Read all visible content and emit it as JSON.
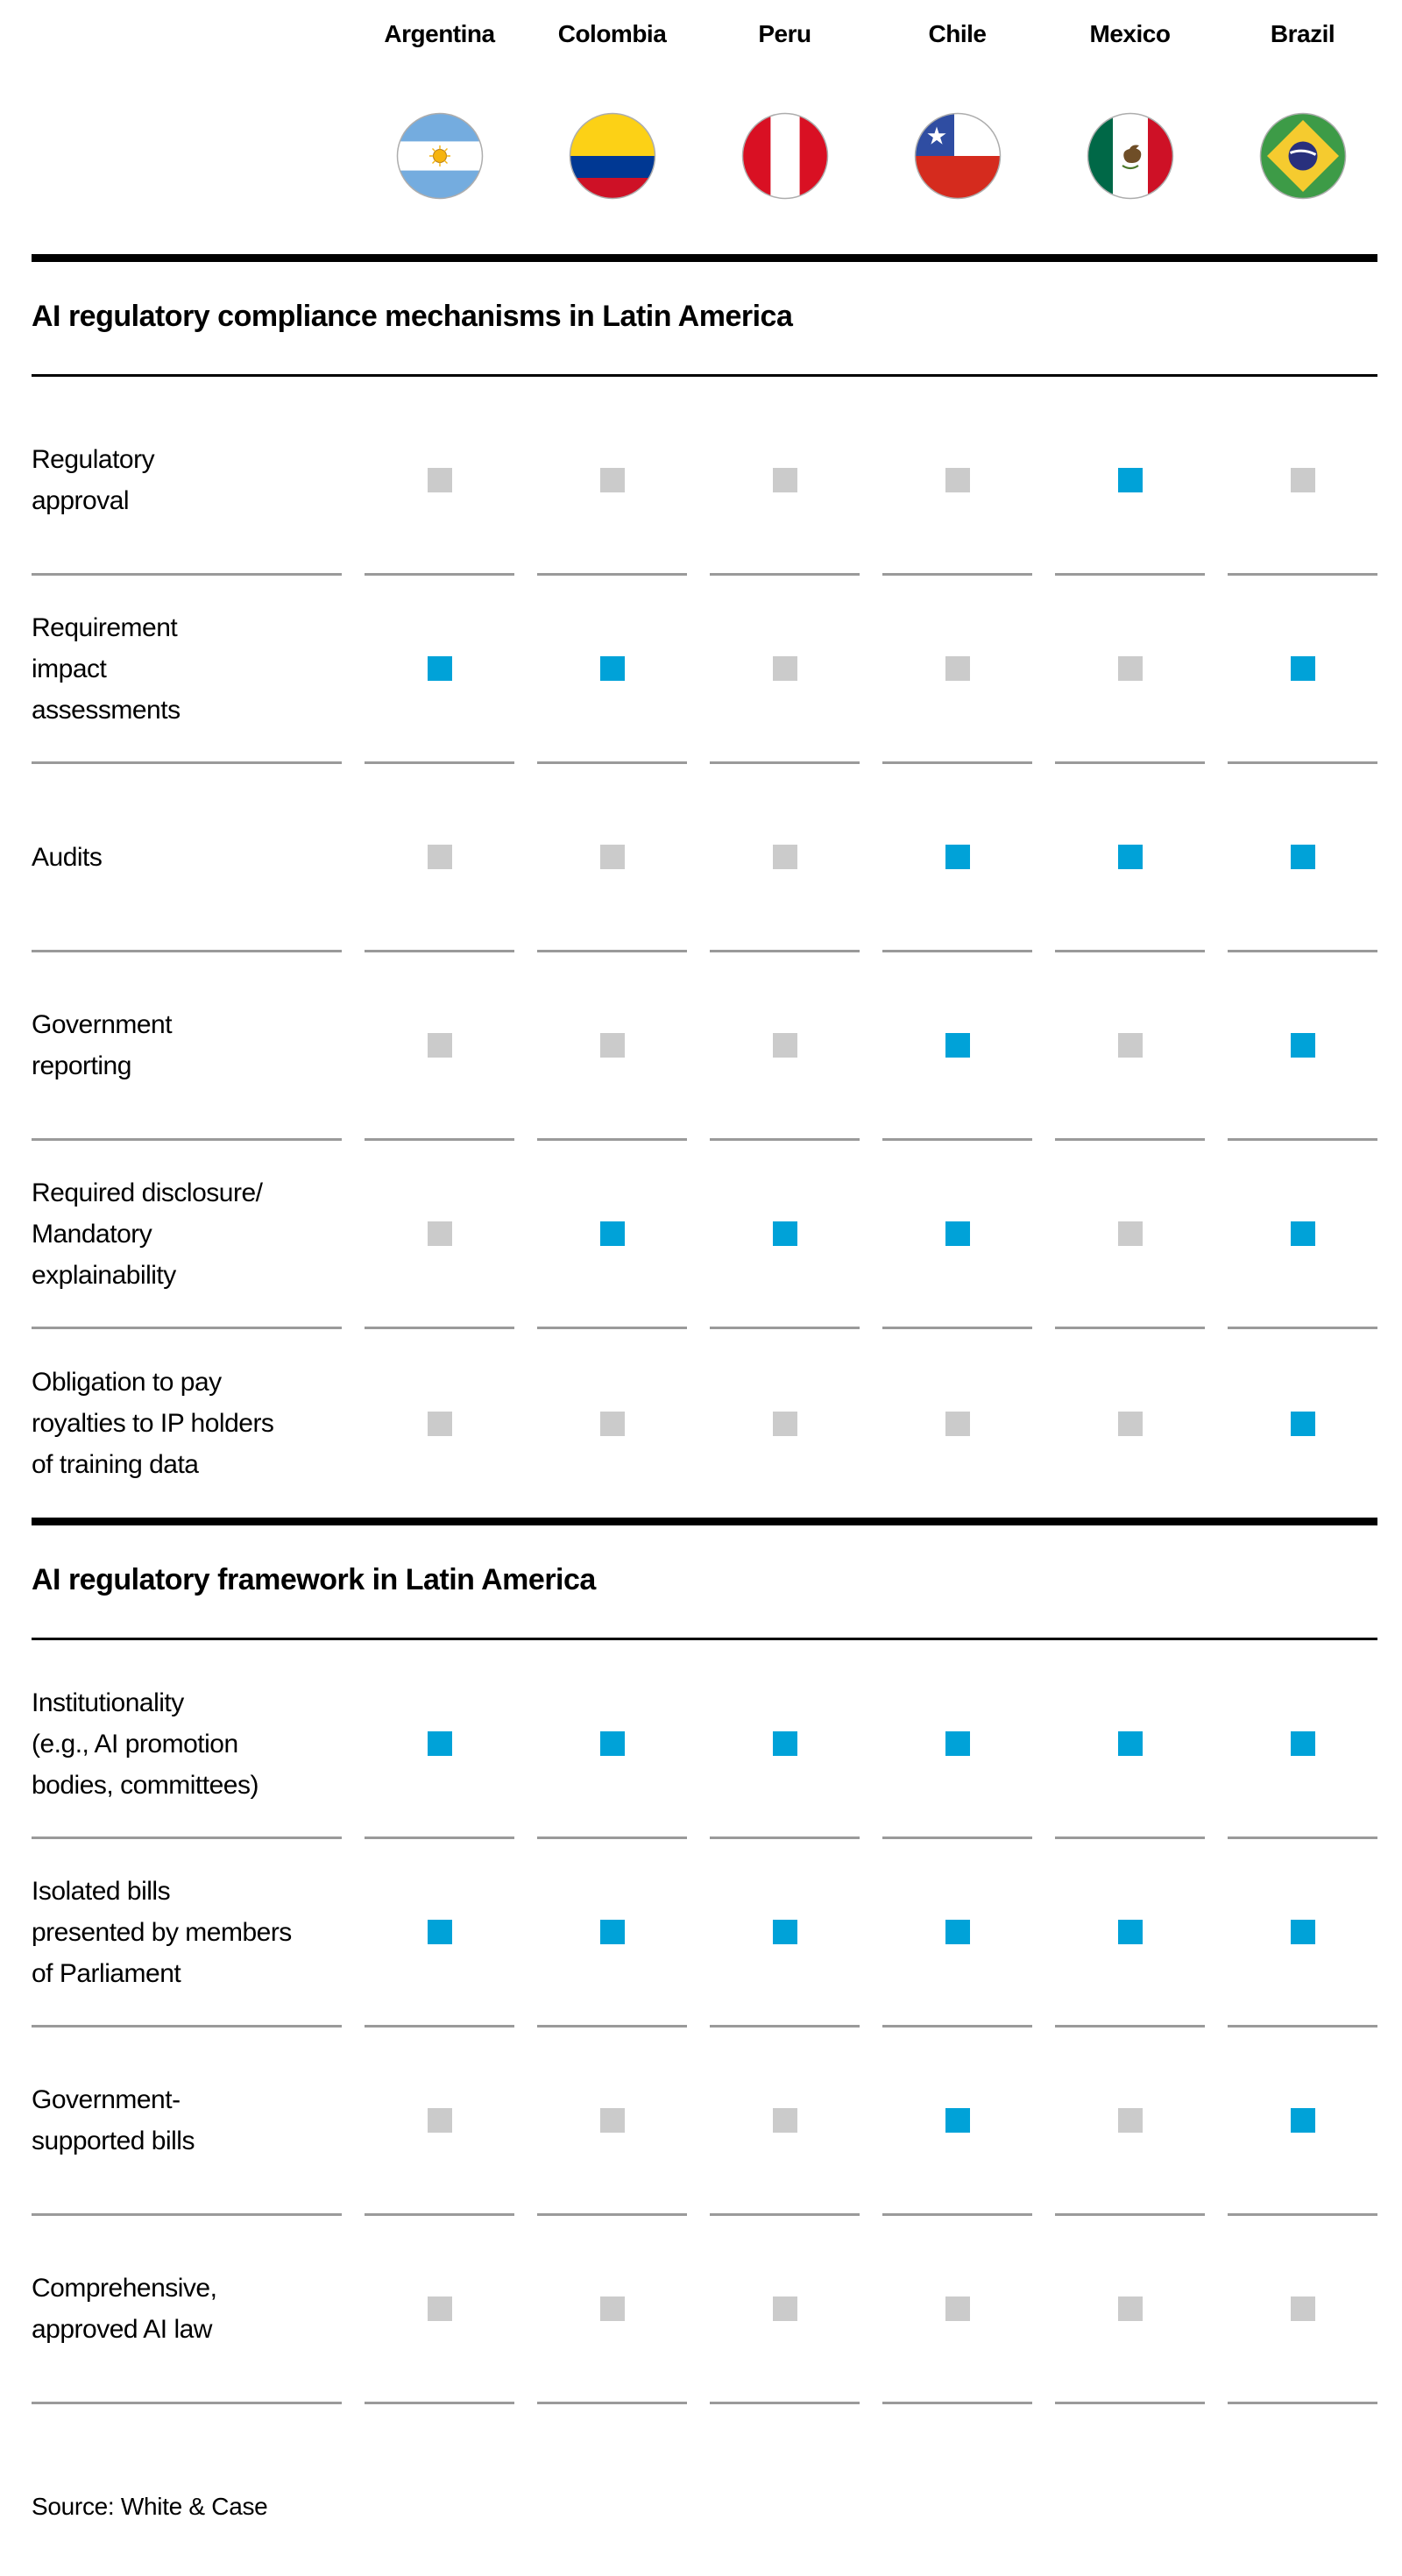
{
  "header": {
    "countries": [
      {
        "name": "Argentina",
        "flag": "argentina-flag-icon"
      },
      {
        "name": "Colombia",
        "flag": "colombia-flag-icon"
      },
      {
        "name": "Peru",
        "flag": "peru-flag-icon"
      },
      {
        "name": "Chile",
        "flag": "chile-flag-icon"
      },
      {
        "name": "Mexico",
        "flag": "mexico-flag-icon"
      },
      {
        "name": "Brazil",
        "flag": "brazil-flag-icon"
      }
    ]
  },
  "colors": {
    "present": "#00A2D8",
    "absent": "#CBCBCB",
    "separator": "#9A9A9A",
    "rule": "#000000"
  },
  "chart_data": [
    {
      "type": "table",
      "title": "AI regulatory compliance mechanisms in Latin America",
      "columns": [
        "Argentina",
        "Colombia",
        "Peru",
        "Chile",
        "Mexico",
        "Brazil"
      ],
      "cell_encoding": {
        "true": "blue square (mechanism present)",
        "false": "gray square (not present)"
      },
      "rows": [
        {
          "label": "Regulatory\napproval",
          "values": [
            false,
            false,
            false,
            false,
            true,
            false
          ]
        },
        {
          "label": "Requirement\nimpact\nassessments",
          "values": [
            true,
            true,
            false,
            false,
            false,
            true
          ]
        },
        {
          "label": "Audits",
          "values": [
            false,
            false,
            false,
            true,
            true,
            true
          ]
        },
        {
          "label": "Government\nreporting",
          "values": [
            false,
            false,
            false,
            true,
            false,
            true
          ]
        },
        {
          "label": "Required disclosure/\nMandatory\nexplainability",
          "values": [
            false,
            true,
            true,
            true,
            false,
            true
          ]
        },
        {
          "label": "Obligation to pay\nroyalties to IP holders\nof training data",
          "values": [
            false,
            false,
            false,
            false,
            false,
            true
          ]
        }
      ]
    },
    {
      "type": "table",
      "title": "AI regulatory framework in Latin America",
      "columns": [
        "Argentina",
        "Colombia",
        "Peru",
        "Chile",
        "Mexico",
        "Brazil"
      ],
      "cell_encoding": {
        "true": "blue square (present)",
        "false": "gray square (not present)"
      },
      "rows": [
        {
          "label": "Institutionality\n(e.g., AI promotion\nbodies, committees)",
          "values": [
            true,
            true,
            true,
            true,
            true,
            true
          ]
        },
        {
          "label": "Isolated bills\npresented by members\nof Parliament",
          "values": [
            true,
            true,
            true,
            true,
            true,
            true
          ]
        },
        {
          "label": "Government-\nsupported bills",
          "values": [
            false,
            false,
            false,
            true,
            false,
            true
          ]
        },
        {
          "label": "Comprehensive,\napproved AI law",
          "values": [
            false,
            false,
            false,
            false,
            false,
            false
          ]
        }
      ]
    }
  ],
  "footer": {
    "source": "Source: White & Case"
  }
}
